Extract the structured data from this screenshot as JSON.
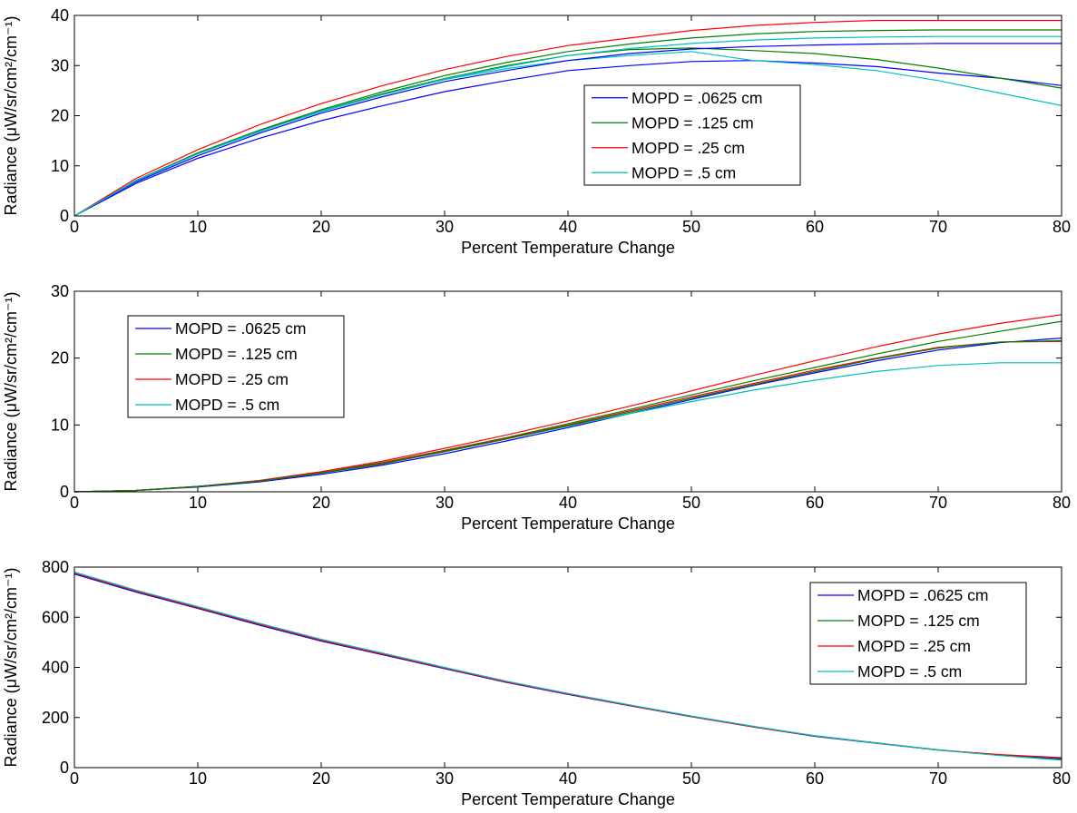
{
  "chart_data": [
    {
      "type": "line",
      "xlabel": "Percent Temperature Change",
      "ylabel": "Radiance (μW/sr/cm²/cm⁻¹)",
      "xlim": [
        0,
        80
      ],
      "ylim": [
        0,
        40
      ],
      "xticks": [
        "0",
        "10",
        "20",
        "30",
        "40",
        "50",
        "60",
        "70",
        "80"
      ],
      "yticks": [
        "0",
        "10",
        "20",
        "30",
        "40"
      ],
      "legend_position": "center-right",
      "x": [
        0,
        5,
        10,
        15,
        20,
        25,
        30,
        35,
        40,
        45,
        50,
        55,
        60,
        65,
        70,
        75,
        80
      ],
      "series": [
        {
          "name": "MOPD = .0625 cm",
          "color": "#0000ff",
          "values": [
            0,
            6.5,
            11.5,
            15.5,
            19,
            22,
            24.8,
            27,
            29,
            30,
            30.8,
            31,
            30.5,
            29.8,
            28.5,
            27.5,
            26
          ]
        },
        {
          "name": "MOPD = .125 cm",
          "color": "#008000",
          "values": [
            0,
            7,
            12.5,
            17,
            21,
            24.4,
            27.4,
            30,
            32,
            33.2,
            33.5,
            33,
            32.4,
            31.2,
            29.5,
            27.5,
            25.5
          ]
        },
        {
          "name": "MOPD = .25 cm",
          "color": "#ff0000",
          "values": [
            0,
            7.5,
            13.2,
            18.2,
            22.4,
            26,
            29.2,
            31.8,
            34,
            35.5,
            37,
            38,
            38.6,
            39,
            39,
            39,
            39
          ]
        },
        {
          "name": "MOPD = .5 cm",
          "color": "#00bfbf",
          "values": [
            0,
            7,
            12.4,
            16.8,
            21,
            24.2,
            27.2,
            29.4,
            31,
            32,
            32.8,
            31,
            30.2,
            29,
            27,
            24.5,
            22
          ]
        },
        {
          "name": "",
          "color": "#0000ff",
          "values": [
            0,
            6.8,
            12,
            16.5,
            20.5,
            23.8,
            26.8,
            29,
            31,
            32.4,
            33.3,
            33.8,
            34.1,
            34.3,
            34.4,
            34.4,
            34.4
          ]
        },
        {
          "name": "",
          "color": "#008000",
          "values": [
            0,
            7.1,
            12.6,
            17.1,
            21.2,
            24.8,
            28,
            30.6,
            32.8,
            34.3,
            35.5,
            36.3,
            36.8,
            37,
            37.1,
            37.1,
            37.1
          ]
        },
        {
          "name": "",
          "color": "#00bfbf",
          "values": [
            0,
            7,
            12.4,
            16.9,
            20.8,
            24.2,
            27.3,
            29.8,
            32,
            33.4,
            34.4,
            35.1,
            35.5,
            35.7,
            35.8,
            35.8,
            35.8
          ]
        }
      ]
    },
    {
      "type": "line",
      "xlabel": "Percent Temperature Change",
      "ylabel": "Radiance (μW/sr/cm²/cm⁻¹)",
      "xlim": [
        0,
        80
      ],
      "ylim": [
        0,
        30
      ],
      "xticks": [
        "0",
        "10",
        "20",
        "30",
        "40",
        "50",
        "60",
        "70",
        "80"
      ],
      "yticks": [
        "0",
        "10",
        "20",
        "30"
      ],
      "legend_position": "top-left",
      "x": [
        0,
        5,
        10,
        15,
        20,
        25,
        30,
        35,
        40,
        45,
        50,
        55,
        60,
        65,
        70,
        75,
        80
      ],
      "series": [
        {
          "name": "MOPD = .0625 cm",
          "color": "#0000ff",
          "values": [
            0,
            0.2,
            0.7,
            1.5,
            2.6,
            4,
            5.7,
            7.6,
            9.6,
            11.7,
            13.8,
            15.9,
            17.8,
            19.6,
            21.2,
            22.3,
            23
          ]
        },
        {
          "name": "MOPD = .125 cm",
          "color": "#008000",
          "values": [
            0,
            0.2,
            0.8,
            1.6,
            2.9,
            4.4,
            6.2,
            8.1,
            10.2,
            12.3,
            14.5,
            16.6,
            18.6,
            20.6,
            22.5,
            24,
            25.5
          ]
        },
        {
          "name": "MOPD = .25 cm",
          "color": "#ff0000",
          "values": [
            0,
            0.2,
            0.8,
            1.7,
            3,
            4.6,
            6.5,
            8.5,
            10.6,
            12.8,
            15.1,
            17.4,
            19.6,
            21.7,
            23.6,
            25.2,
            26.5
          ]
        },
        {
          "name": "MOPD = .5 cm",
          "color": "#00bfbf",
          "values": [
            0,
            0.2,
            0.8,
            1.6,
            2.8,
            4.3,
            6,
            7.9,
            9.8,
            11.7,
            13.5,
            15.2,
            16.7,
            18,
            18.9,
            19.3,
            19.3
          ]
        },
        {
          "name": "",
          "color": "#ff0000",
          "values": [
            0,
            0.2,
            0.8,
            1.6,
            2.8,
            4.3,
            6.1,
            8,
            10,
            12.1,
            14.2,
            16.2,
            18.2,
            20,
            21.6,
            22.4,
            22.5
          ]
        },
        {
          "name": "",
          "color": "#008000",
          "values": [
            0,
            0.2,
            0.8,
            1.6,
            2.8,
            4.2,
            6,
            7.9,
            9.9,
            11.9,
            14,
            16,
            18,
            19.9,
            21.5,
            22.4,
            22.6
          ]
        }
      ]
    },
    {
      "type": "line",
      "xlabel": "Percent Temperature Change",
      "ylabel": "Radiance (μW/sr/cm²/cm⁻¹)",
      "xlim": [
        0,
        80
      ],
      "ylim": [
        0,
        800
      ],
      "xticks": [
        "0",
        "10",
        "20",
        "30",
        "40",
        "50",
        "60",
        "70",
        "80"
      ],
      "yticks": [
        "0",
        "200",
        "400",
        "600",
        "800"
      ],
      "legend_position": "top-right",
      "x": [
        0,
        5,
        10,
        15,
        20,
        25,
        30,
        35,
        40,
        45,
        50,
        55,
        60,
        65,
        70,
        75,
        80
      ],
      "series": [
        {
          "name": "MOPD = .0625 cm",
          "color": "#0000ff",
          "values": [
            772,
            700,
            635,
            568,
            505,
            450,
            395,
            340,
            292,
            247,
            203,
            162,
            125,
            97,
            70,
            50,
            35
          ]
        },
        {
          "name": "MOPD = .125 cm",
          "color": "#008000",
          "values": [
            778,
            706,
            640,
            574,
            510,
            455,
            399,
            344,
            295,
            249,
            205,
            164,
            127,
            99,
            71,
            49,
            32
          ]
        },
        {
          "name": "MOPD = .25 cm",
          "color": "#ff0000",
          "values": [
            776,
            704,
            638,
            572,
            508,
            453,
            397,
            342,
            294,
            248,
            204,
            163,
            126,
            98,
            70,
            52,
            40
          ]
        },
        {
          "name": "MOPD = .5 cm",
          "color": "#00bfbf",
          "values": [
            780,
            708,
            642,
            576,
            512,
            457,
            400,
            345,
            296,
            250,
            206,
            165,
            127,
            98,
            70,
            48,
            30
          ]
        }
      ]
    }
  ]
}
